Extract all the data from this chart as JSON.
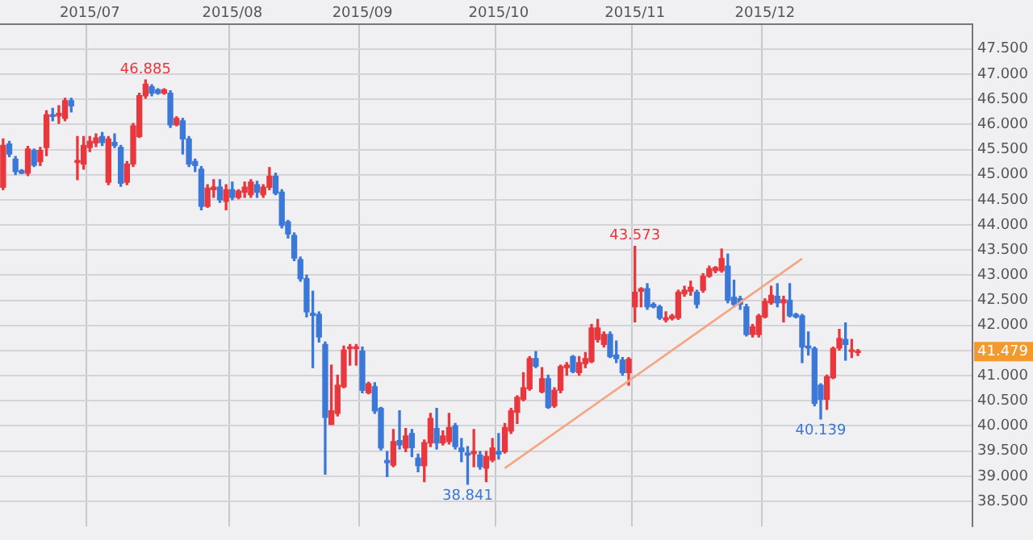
{
  "chart_data": {
    "type": "candlestick",
    "categories": [
      null,
      null,
      null,
      null,
      null,
      null,
      null,
      null,
      null,
      null,
      null,
      null,
      null,
      null,
      "2015/07",
      null,
      null,
      null,
      null,
      null,
      null,
      null,
      null,
      null,
      null,
      null,
      null,
      null,
      null,
      null,
      null,
      null,
      null,
      null,
      null,
      null,
      null,
      "2015/08",
      null,
      null,
      null,
      null,
      null,
      null,
      null,
      null,
      null,
      null,
      null,
      null,
      null,
      null,
      null,
      null,
      null,
      null,
      null,
      null,
      "2015/09",
      null,
      null,
      null,
      null,
      null,
      null,
      null,
      null,
      null,
      null,
      null,
      null,
      null,
      null,
      null,
      null,
      null,
      null,
      null,
      null,
      null,
      "2015/10",
      null,
      null,
      null,
      null,
      null,
      null,
      null,
      null,
      null,
      null,
      null,
      null,
      null,
      null,
      null,
      null,
      null,
      null,
      null,
      null,
      null,
      "2015/11",
      null,
      null,
      null,
      null,
      null,
      null,
      null,
      null,
      null,
      null,
      null,
      null,
      null,
      null,
      null,
      null,
      null,
      null,
      null,
      null,
      "2015/12",
      null,
      null,
      null,
      null,
      null,
      null,
      null,
      null,
      null,
      null,
      null,
      null,
      null,
      null,
      null,
      null,
      null,
      null,
      null,
      null,
      null,
      null,
      null,
      null,
      null,
      null,
      null,
      null,
      null,
      null,
      null,
      null,
      null
    ],
    "series": [
      {
        "ohlc": [
          [
            44.75,
            45.71,
            44.7,
            45.58
          ],
          [
            45.61,
            45.66,
            45.36,
            45.41
          ],
          [
            45.31,
            45.36,
            45.0,
            45.06
          ],
          [
            45.08,
            45.1,
            45.02,
            45.03
          ],
          [
            45.03,
            45.56,
            44.98,
            45.51
          ],
          [
            45.48,
            45.51,
            45.16,
            45.19
          ],
          [
            45.26,
            45.54,
            45.18,
            45.48
          ],
          [
            45.54,
            46.27,
            45.38,
            46.19
          ],
          [
            46.19,
            46.32,
            46.07,
            46.16
          ],
          [
            46.17,
            46.37,
            46.02,
            46.22
          ],
          [
            46.12,
            46.52,
            46.07,
            46.47
          ],
          [
            46.47,
            46.52,
            46.25,
            46.37
          ],
          [
            45.24,
            45.76,
            44.9,
            45.28
          ],
          [
            45.21,
            45.76,
            45.11,
            45.58
          ],
          [
            45.54,
            45.76,
            45.46,
            45.66
          ],
          [
            45.63,
            45.81,
            45.56,
            45.73
          ],
          [
            45.76,
            45.84,
            45.58,
            45.64
          ],
          [
            44.85,
            45.76,
            44.8,
            45.71
          ],
          [
            45.64,
            45.81,
            45.54,
            45.58
          ],
          [
            45.54,
            45.58,
            44.77,
            44.83
          ],
          [
            44.85,
            45.26,
            44.8,
            45.21
          ],
          [
            45.21,
            46.02,
            45.16,
            45.97
          ],
          [
            45.76,
            46.62,
            45.74,
            46.57
          ],
          [
            46.57,
            46.885,
            46.52,
            46.8
          ],
          [
            46.75,
            46.79,
            46.57,
            46.62
          ],
          [
            46.69,
            46.71,
            46.6,
            46.62
          ],
          [
            46.62,
            46.71,
            46.6,
            46.69
          ],
          [
            46.62,
            46.67,
            45.94,
            45.99
          ],
          [
            45.99,
            46.15,
            45.97,
            46.12
          ],
          [
            46.07,
            46.12,
            45.41,
            45.71
          ],
          [
            45.71,
            45.76,
            45.16,
            45.21
          ],
          [
            45.26,
            45.31,
            45.06,
            45.18
          ],
          [
            45.11,
            45.16,
            44.3,
            44.37
          ],
          [
            44.37,
            44.8,
            44.35,
            44.73
          ],
          [
            44.7,
            44.9,
            44.55,
            44.75
          ],
          [
            44.75,
            44.9,
            44.45,
            44.5
          ],
          [
            44.47,
            44.8,
            44.3,
            44.7
          ],
          [
            44.7,
            44.85,
            44.5,
            44.55
          ],
          [
            44.55,
            44.7,
            44.52,
            44.67
          ],
          [
            44.65,
            44.85,
            44.55,
            44.75
          ],
          [
            44.6,
            44.9,
            44.55,
            44.85
          ],
          [
            44.8,
            44.87,
            44.55,
            44.65
          ],
          [
            44.6,
            44.8,
            44.55,
            44.75
          ],
          [
            44.75,
            45.14,
            44.7,
            44.97
          ],
          [
            44.97,
            45.03,
            44.6,
            44.63
          ],
          [
            44.65,
            44.7,
            43.94,
            43.99
          ],
          [
            44.06,
            44.09,
            43.74,
            43.82
          ],
          [
            43.79,
            43.84,
            43.29,
            43.34
          ],
          [
            43.31,
            43.36,
            42.88,
            42.93
          ],
          [
            42.93,
            43.0,
            42.17,
            42.27
          ],
          [
            42.24,
            42.68,
            41.16,
            42.2
          ],
          [
            42.22,
            42.27,
            41.67,
            41.77
          ],
          [
            41.62,
            41.67,
            39.04,
            40.17
          ],
          [
            40.03,
            41.21,
            40.03,
            40.3
          ],
          [
            40.25,
            41.01,
            40.2,
            40.81
          ],
          [
            40.78,
            41.59,
            40.76,
            41.51
          ],
          [
            41.54,
            41.62,
            41.21,
            41.57
          ],
          [
            41.54,
            41.62,
            41.21,
            41.57
          ],
          [
            41.49,
            41.57,
            40.66,
            40.71
          ],
          [
            40.66,
            40.87,
            40.64,
            40.84
          ],
          [
            40.78,
            40.86,
            40.25,
            40.3
          ],
          [
            40.35,
            40.37,
            39.52,
            39.56
          ],
          [
            39.31,
            39.49,
            38.99,
            39.27
          ],
          [
            39.22,
            39.93,
            39.19,
            39.69
          ],
          [
            39.71,
            40.3,
            39.54,
            39.62
          ],
          [
            39.56,
            39.95,
            39.49,
            39.8
          ],
          [
            39.85,
            39.93,
            39.39,
            39.57
          ],
          [
            39.36,
            39.44,
            39.09,
            39.21
          ],
          [
            39.21,
            39.72,
            38.89,
            39.67
          ],
          [
            39.66,
            40.25,
            39.59,
            40.15
          ],
          [
            39.95,
            40.35,
            39.54,
            39.66
          ],
          [
            39.66,
            39.9,
            39.62,
            39.8
          ],
          [
            39.69,
            40.25,
            39.64,
            39.97
          ],
          [
            40.0,
            40.05,
            39.54,
            39.59
          ],
          [
            39.56,
            39.75,
            39.29,
            39.49
          ],
          [
            39.46,
            39.59,
            38.841,
            39.42
          ],
          [
            39.45,
            39.93,
            39.19,
            39.49
          ],
          [
            39.42,
            39.49,
            39.14,
            39.19
          ],
          [
            39.16,
            39.49,
            38.89,
            39.39
          ],
          [
            39.32,
            39.75,
            39.29,
            39.56
          ],
          [
            39.49,
            39.85,
            39.34,
            39.44
          ],
          [
            39.49,
            40.05,
            39.46,
            39.97
          ],
          [
            39.9,
            40.35,
            39.85,
            40.3
          ],
          [
            40.27,
            40.6,
            40.05,
            40.57
          ],
          [
            40.53,
            41.06,
            40.5,
            40.76
          ],
          [
            40.74,
            41.38,
            40.71,
            41.34
          ],
          [
            41.34,
            41.48,
            41.16,
            41.19
          ],
          [
            40.68,
            41.16,
            40.66,
            40.94
          ],
          [
            40.94,
            41.01,
            40.35,
            40.37
          ],
          [
            40.4,
            40.76,
            40.37,
            40.71
          ],
          [
            40.71,
            41.21,
            40.66,
            41.18
          ],
          [
            41.16,
            41.26,
            41.01,
            41.21
          ],
          [
            41.38,
            41.4,
            41.06,
            41.08
          ],
          [
            41.06,
            41.38,
            41.01,
            41.26
          ],
          [
            41.24,
            41.46,
            41.16,
            41.34
          ],
          [
            41.28,
            42.02,
            41.26,
            41.95
          ],
          [
            41.72,
            42.12,
            41.67,
            41.95
          ],
          [
            41.62,
            41.87,
            41.57,
            41.82
          ],
          [
            41.82,
            41.87,
            41.36,
            41.38
          ],
          [
            41.41,
            41.69,
            41.26,
            41.34
          ],
          [
            41.31,
            41.36,
            41.01,
            41.06
          ],
          [
            41.06,
            41.36,
            40.81,
            41.33
          ],
          [
            42.37,
            43.573,
            42.07,
            42.66
          ],
          [
            42.68,
            42.75,
            42.37,
            42.73
          ],
          [
            42.73,
            42.83,
            42.32,
            42.37
          ],
          [
            42.42,
            42.45,
            42.35,
            42.37
          ],
          [
            42.37,
            42.4,
            42.12,
            42.15
          ],
          [
            42.11,
            42.27,
            42.07,
            42.15
          ],
          [
            42.14,
            42.22,
            42.11,
            42.19
          ],
          [
            42.15,
            42.7,
            42.12,
            42.66
          ],
          [
            42.63,
            42.78,
            42.58,
            42.7
          ],
          [
            42.68,
            42.88,
            42.6,
            42.76
          ],
          [
            42.66,
            42.7,
            42.35,
            42.42
          ],
          [
            42.7,
            43.03,
            42.66,
            42.98
          ],
          [
            42.98,
            43.18,
            42.96,
            43.13
          ],
          [
            43.09,
            43.17,
            43.05,
            43.15
          ],
          [
            43.09,
            43.52,
            43.06,
            43.33
          ],
          [
            43.18,
            43.42,
            42.45,
            42.5
          ],
          [
            42.56,
            42.9,
            42.37,
            42.42
          ],
          [
            42.53,
            42.58,
            42.32,
            42.42
          ],
          [
            42.37,
            42.42,
            41.79,
            41.82
          ],
          [
            41.82,
            42.02,
            41.77,
            41.97
          ],
          [
            41.82,
            42.22,
            41.77,
            42.19
          ],
          [
            42.17,
            42.53,
            42.15,
            42.48
          ],
          [
            42.45,
            42.78,
            42.42,
            42.6
          ],
          [
            42.58,
            42.83,
            42.37,
            42.45
          ],
          [
            42.45,
            42.58,
            42.07,
            42.51
          ],
          [
            42.5,
            42.83,
            42.17,
            42.19
          ],
          [
            42.22,
            42.24,
            42.15,
            42.17
          ],
          [
            42.19,
            42.22,
            41.26,
            41.57
          ],
          [
            41.59,
            41.87,
            41.41,
            41.55
          ],
          [
            41.54,
            41.57,
            40.4,
            40.45
          ],
          [
            40.81,
            40.84,
            40.139,
            40.53
          ],
          [
            40.53,
            41.01,
            40.33,
            40.98
          ],
          [
            40.96,
            41.57,
            40.94,
            41.54
          ],
          [
            41.55,
            41.92,
            41.51,
            41.74
          ],
          [
            41.72,
            42.05,
            41.31,
            41.62
          ],
          [
            41.48,
            41.72,
            41.36,
            41.51
          ],
          [
            41.46,
            41.52,
            41.4,
            41.479
          ],
          null,
          null,
          null,
          null,
          null,
          null,
          null,
          null,
          null,
          null,
          null,
          null,
          null,
          null,
          null,
          null,
          null,
          null
        ],
        "colors": [
          "#e8383d",
          "#3c78d8",
          "#3c78d8",
          "#3c78d8",
          "#e8383d",
          "#3c78d8",
          "#e8383d",
          "#e8383d",
          "#3c78d8",
          "#e8383d",
          "#e8383d",
          "#3c78d8",
          "#e8383d",
          "#e8383d",
          "#e8383d",
          "#e8383d",
          "#3c78d8",
          "#e8383d",
          "#3c78d8",
          "#3c78d8",
          "#e8383d",
          "#e8383d",
          "#e8383d",
          "#e8383d",
          "#3c78d8",
          "#3c78d8",
          "#e8383d",
          "#3c78d8",
          "#e8383d",
          "#3c78d8",
          "#3c78d8",
          "#3c78d8",
          "#3c78d8",
          "#e8383d",
          "#e8383d",
          "#3c78d8",
          "#e8383d",
          "#3c78d8",
          "#e8383d",
          "#e8383d",
          "#e8383d",
          "#3c78d8",
          "#e8383d",
          "#e8383d",
          "#3c78d8",
          "#3c78d8",
          "#3c78d8",
          "#3c78d8",
          "#3c78d8",
          "#3c78d8",
          "#3c78d8",
          "#3c78d8",
          "#3c78d8",
          "#e8383d",
          "#e8383d",
          "#e8383d",
          "#e8383d",
          "#e8383d",
          "#3c78d8",
          "#e8383d",
          "#3c78d8",
          "#3c78d8",
          "#3c78d8",
          "#e8383d",
          "#3c78d8",
          "#e8383d",
          "#3c78d8",
          "#3c78d8",
          "#e8383d",
          "#e8383d",
          "#3c78d8",
          "#e8383d",
          "#e8383d",
          "#3c78d8",
          "#3c78d8",
          "#3c78d8",
          "#e8383d",
          "#3c78d8",
          "#e8383d",
          "#e8383d",
          "#3c78d8",
          "#e8383d",
          "#e8383d",
          "#e8383d",
          "#e8383d",
          "#e8383d",
          "#3c78d8",
          "#e8383d",
          "#3c78d8",
          "#e8383d",
          "#e8383d",
          "#e8383d",
          "#3c78d8",
          "#e8383d",
          "#e8383d",
          "#e8383d",
          "#e8383d",
          "#e8383d",
          "#3c78d8",
          "#3c78d8",
          "#3c78d8",
          "#e8383d",
          "#e8383d",
          "#e8383d",
          "#3c78d8",
          "#3c78d8",
          "#3c78d8",
          "#e8383d",
          "#e8383d",
          "#e8383d",
          "#e8383d",
          "#e8383d",
          "#3c78d8",
          "#e8383d",
          "#e8383d",
          "#e8383d",
          "#e8383d",
          "#3c78d8",
          "#3c78d8",
          "#3c78d8",
          "#3c78d8",
          "#e8383d",
          "#e8383d",
          "#e8383d",
          "#e8383d",
          "#3c78d8",
          "#e8383d",
          "#3c78d8",
          "#3c78d8",
          "#3c78d8",
          "#3c78d8",
          "#3c78d8",
          "#3c78d8",
          "#e8383d",
          "#e8383d",
          "#e8383d",
          "#3c78d8",
          "#e8383d",
          "#e8383d",
          null,
          null,
          null,
          null,
          null,
          null,
          null,
          null,
          null,
          null,
          null,
          null,
          null,
          null,
          null,
          null,
          null,
          null
        ]
      },
      {
        "type": "line",
        "color": "#f4a582",
        "values": [
          null,
          null,
          null,
          null,
          null,
          null,
          null,
          null,
          null,
          null,
          null,
          null,
          null,
          null,
          null,
          null,
          null,
          null,
          null,
          null,
          null,
          null,
          null,
          null,
          null,
          null,
          null,
          null,
          null,
          null,
          null,
          null,
          null,
          null,
          null,
          null,
          null,
          null,
          null,
          null,
          null,
          null,
          null,
          null,
          null,
          null,
          null,
          null,
          null,
          null,
          null,
          null,
          null,
          null,
          null,
          null,
          null,
          null,
          null,
          null,
          null,
          null,
          null,
          null,
          null,
          null,
          null,
          null,
          null,
          null,
          null,
          null,
          null,
          null,
          null,
          null,
          null,
          null,
          null,
          null,
          null,
          39.16,
          null,
          null,
          null,
          null,
          null,
          null,
          null,
          null,
          null,
          null,
          null,
          null,
          null,
          null,
          null,
          null,
          null,
          null,
          null,
          null,
          null,
          null,
          null,
          null,
          null,
          null,
          null,
          null,
          null,
          null,
          null,
          null,
          null,
          null,
          null,
          null,
          null,
          null,
          null,
          null,
          null,
          null,
          null,
          null,
          null,
          null,
          null,
          43.33,
          null,
          null,
          null,
          null,
          null,
          null,
          null,
          null,
          null,
          null,
          null,
          null,
          null,
          null,
          null,
          null,
          null,
          null,
          null,
          null,
          null,
          null,
          null,
          null,
          null,
          null,
          null
        ]
      }
    ],
    "ylim": [
      38.0,
      48.0
    ],
    "yticks": [
      {
        "value": 38.5,
        "label": "38.500"
      },
      {
        "value": 39,
        "label": "39.000"
      },
      {
        "value": 39.5,
        "label": "39.500"
      },
      {
        "value": 40,
        "label": "40.000"
      },
      {
        "value": 40.5,
        "label": "40.500"
      },
      {
        "value": 41,
        "label": "41.000"
      },
      {
        "value": 41.5,
        "label": null
      },
      {
        "value": 42,
        "label": "42.000"
      },
      {
        "value": 42.5,
        "label": "42.500"
      },
      {
        "value": 43,
        "label": "43.000"
      },
      {
        "value": 43.5,
        "label": "43.500"
      },
      {
        "value": 44,
        "label": "44.000"
      },
      {
        "value": 44.5,
        "label": "44.500"
      },
      {
        "value": 45,
        "label": "45.000"
      },
      {
        "value": 45.5,
        "label": "45.500"
      },
      {
        "value": 46,
        "label": "46.000"
      },
      {
        "value": 46.5,
        "label": "46.500"
      },
      {
        "value": 47,
        "label": "47.000"
      },
      {
        "value": 47.5,
        "label": "47.500"
      }
    ],
    "grid": true,
    "annotations": [
      {
        "text": "46.885",
        "y": 46.885
      },
      {
        "text": "43.573",
        "y": 43.573
      },
      {
        "text": "38.841",
        "y": 38.841
      },
      {
        "text": "40.139",
        "y": 40.139
      },
      {
        "text": "41.479",
        "y": 41.479
      }
    ]
  }
}
